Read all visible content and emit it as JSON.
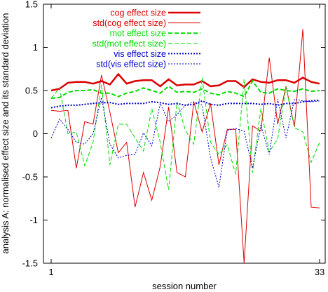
{
  "chart_data": {
    "type": "line",
    "xlabel": "session number",
    "ylabel": "analysis A: normalised effect size and its standard deviation",
    "xlim": [
      1,
      33
    ],
    "ylim": [
      -1.5,
      1.5
    ],
    "xticks": [
      1,
      33
    ],
    "yticks": [
      -1.5,
      -1,
      -0.5,
      0,
      0.5,
      1,
      1.5
    ],
    "ytick_labels": [
      "-1.5",
      "-1",
      "-0.5",
      "0",
      "0.5",
      "1",
      "1.5"
    ],
    "xtick_labels": [
      "1",
      "33"
    ],
    "grid": false,
    "legend_position": "top-right",
    "x": [
      1,
      2,
      3,
      4,
      5,
      6,
      7,
      8,
      9,
      10,
      11,
      12,
      13,
      14,
      15,
      16,
      17,
      18,
      19,
      20,
      21,
      22,
      23,
      24,
      25,
      26,
      27,
      28,
      29,
      30,
      31,
      32,
      33
    ],
    "series": [
      {
        "name": "cog effect size",
        "color": "#dd0000",
        "dash": "solid",
        "width": 2.5,
        "values": [
          0.5,
          0.52,
          0.59,
          0.6,
          0.6,
          0.58,
          0.61,
          0.57,
          0.69,
          0.58,
          0.61,
          0.62,
          0.62,
          0.55,
          0.63,
          0.56,
          0.57,
          0.57,
          0.61,
          0.55,
          0.56,
          0.61,
          0.61,
          0.54,
          0.63,
          0.6,
          0.59,
          0.62,
          0.62,
          0.59,
          0.65,
          0.6,
          0.58
        ]
      },
      {
        "name": "std(cog effect size)",
        "color": "#dd0000",
        "dash": "solid",
        "width": 1,
        "values": [
          0.27,
          0.26,
          0.27,
          -0.4,
          0.14,
          0.11,
          0.68,
          0.25,
          -0.22,
          -0.1,
          -0.85,
          -0.45,
          -0.77,
          -0.38,
          0.31,
          -0.45,
          -0.5,
          0.37,
          0.02,
          0.35,
          -0.36,
          0.05,
          0.05,
          -1.5,
          0.09,
          0.03,
          0.88,
          0.11,
          0.55,
          0.08,
          1.21,
          -0.85,
          -0.86
        ]
      },
      {
        "name": "mot effect size",
        "color": "#00dd00",
        "dash": "dash",
        "width": 2,
        "values": [
          0.41,
          0.42,
          0.48,
          0.5,
          0.5,
          0.51,
          0.47,
          0.47,
          0.43,
          0.47,
          0.49,
          0.53,
          0.5,
          0.47,
          0.55,
          0.48,
          0.49,
          0.48,
          0.52,
          0.47,
          0.45,
          0.49,
          0.47,
          0.43,
          0.61,
          0.48,
          0.47,
          0.52,
          0.5,
          0.49,
          0.52,
          0.49,
          0.5
        ]
      },
      {
        "name": "std(mot effect size)",
        "color": "#00dd00",
        "dash": "dash",
        "width": 1,
        "values": [
          0.41,
          0.53,
          0.0,
          0.02,
          -0.37,
          -0.1,
          0.57,
          -0.36,
          0.11,
          0.11,
          -0.05,
          -0.2,
          0.29,
          -0.1,
          -0.65,
          0.37,
          0.04,
          -0.12,
          0.65,
          -0.1,
          -0.24,
          -0.13,
          -0.47,
          0.63,
          -0.45,
          0.29,
          -0.21,
          -0.06,
          0.54,
          0.07,
          0.02,
          -0.33,
          -0.1
        ]
      },
      {
        "name": "vis effect size",
        "color": "#0000cc",
        "dash": "dot",
        "width": 2,
        "values": [
          0.3,
          0.32,
          0.33,
          0.33,
          0.34,
          0.35,
          0.36,
          0.36,
          0.34,
          0.35,
          0.35,
          0.35,
          0.37,
          0.36,
          0.34,
          0.35,
          0.33,
          0.34,
          0.38,
          0.34,
          0.33,
          0.35,
          0.35,
          0.35,
          0.35,
          0.34,
          0.35,
          0.33,
          0.35,
          0.35,
          0.37,
          0.38,
          0.39
        ]
      },
      {
        "name": "std(vis effect size)",
        "color": "#0000cc",
        "dash": "dot",
        "width": 1,
        "values": [
          -0.05,
          0.17,
          0.05,
          -0.1,
          -0.12,
          0.0,
          0.42,
          -0.12,
          -0.28,
          -0.25,
          -0.24,
          0.01,
          -0.14,
          0.35,
          0.14,
          0.22,
          0.33,
          0.37,
          0.33,
          -0.28,
          -0.62,
          0.04,
          0.06,
          0.03,
          -0.4,
          0.1,
          -0.24,
          0.4,
          -0.05,
          0.4,
          0.38,
          0.37,
          0.38
        ]
      }
    ]
  }
}
